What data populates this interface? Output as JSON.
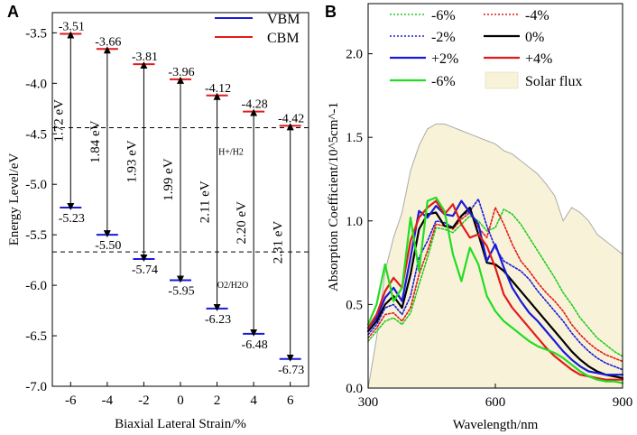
{
  "chart_data": [
    {
      "panel": "A",
      "type": "band-alignment",
      "xlabel": "Biaxial Lateral Strain/%",
      "ylabel": "Energy Level/eV",
      "xlim": [
        -7,
        7
      ],
      "ylim": [
        -7.0,
        -3.3
      ],
      "xticks": [
        -6,
        -4,
        -2,
        0,
        2,
        4,
        6
      ],
      "yticks": [
        -7.0,
        -6.5,
        -6.0,
        -5.5,
        -5.0,
        -4.5,
        -4.0,
        -3.5
      ],
      "categories": [
        -6,
        -4,
        -2,
        0,
        2,
        4,
        6
      ],
      "series": [
        {
          "name": "VBM",
          "color": "#1a1adb",
          "values": [
            -5.23,
            -5.5,
            -5.74,
            -5.95,
            -6.23,
            -6.48,
            -6.73
          ]
        },
        {
          "name": "CBM",
          "color": "#e21a1a",
          "values": [
            -3.51,
            -3.66,
            -3.81,
            -3.96,
            -4.12,
            -4.28,
            -4.42
          ]
        }
      ],
      "vbm_labels": [
        "-5.23",
        "-5.50",
        "-5.74",
        "-5.95",
        "-6.23",
        "-6.48",
        "-6.73"
      ],
      "cbm_labels": [
        "-3.51",
        "-3.66",
        "-3.81",
        "-3.96",
        "-4.12",
        "-4.28",
        "-4.42"
      ],
      "gap_labels": [
        "1.72 eV",
        "1.84 eV",
        "1.93 eV",
        "1.99 eV",
        "2.11 eV",
        "2.20 eV",
        "2.31 eV"
      ],
      "reference_levels": [
        {
          "label": "H+/H2",
          "value": -4.44
        },
        {
          "label": "O2/H2O",
          "value": -5.67
        }
      ],
      "legend": {
        "placement": "top-right",
        "entries": [
          "VBM",
          "CBM"
        ]
      },
      "ytick_labels": [
        "-7.0",
        "-6.5",
        "-6.0",
        "-5.5",
        "-5.0",
        "-4.5",
        "-4.0",
        "-3.5"
      ],
      "xtick_labels": [
        "-6",
        "-4",
        "-2",
        "0",
        "2",
        "4",
        "6"
      ]
    },
    {
      "panel": "B",
      "type": "line",
      "xlabel": "Wavelength/nm",
      "ylabel": "Absorption Coefficient/10^5cm^-1",
      "xlim": [
        300,
        900
      ],
      "ylim": [
        0.0,
        2.3
      ],
      "xticks": [
        300,
        600,
        900
      ],
      "yticks": [
        0.0,
        0.5,
        1.0,
        1.5,
        2.0
      ],
      "xtick_labels": [
        "300",
        "600",
        "900"
      ],
      "ytick_labels": [
        "0.0",
        "0.5",
        "1.0",
        "1.5",
        "2.0"
      ],
      "legend": {
        "placement": "top",
        "entries": [
          "-6%",
          "-4%",
          "-2%",
          "0%",
          "+2%",
          "+4%",
          "-6%",
          "Solar flux"
        ]
      },
      "series": [
        {
          "name": "-6%",
          "color": "#22cc22",
          "style": "dotted",
          "x": [
            300,
            320,
            340,
            360,
            380,
            400,
            420,
            440,
            460,
            480,
            500,
            520,
            540,
            560,
            580,
            600,
            620,
            640,
            660,
            680,
            700,
            720,
            740,
            760,
            780,
            800,
            820,
            840,
            860,
            880,
            900
          ],
          "y": [
            0.28,
            0.34,
            0.4,
            0.42,
            0.38,
            0.45,
            0.62,
            0.78,
            0.96,
            0.95,
            0.93,
            0.98,
            1.03,
            1.0,
            0.94,
            0.96,
            1.07,
            1.04,
            0.98,
            0.9,
            0.82,
            0.74,
            0.66,
            0.57,
            0.5,
            0.42,
            0.36,
            0.3,
            0.26,
            0.22,
            0.19
          ]
        },
        {
          "name": "-4%",
          "color": "#e21a1a",
          "style": "dotted",
          "x": [
            300,
            320,
            340,
            360,
            380,
            400,
            420,
            440,
            460,
            480,
            500,
            520,
            540,
            560,
            580,
            600,
            620,
            640,
            660,
            680,
            700,
            720,
            740,
            760,
            780,
            800,
            820,
            840,
            860,
            880,
            900
          ],
          "y": [
            0.3,
            0.36,
            0.44,
            0.45,
            0.4,
            0.48,
            0.68,
            0.82,
            0.98,
            0.97,
            0.95,
            1.01,
            1.05,
            0.96,
            0.9,
            1.08,
            0.98,
            0.86,
            0.76,
            0.7,
            0.63,
            0.57,
            0.52,
            0.46,
            0.38,
            0.32,
            0.27,
            0.23,
            0.2,
            0.18,
            0.16
          ]
        },
        {
          "name": "-2%",
          "color": "#1a1adb",
          "style": "dotted",
          "x": [
            300,
            320,
            340,
            360,
            380,
            400,
            420,
            440,
            460,
            480,
            500,
            520,
            540,
            560,
            580,
            600,
            620,
            640,
            660,
            680,
            700,
            720,
            740,
            760,
            780,
            800,
            820,
            840,
            860,
            880,
            900
          ],
          "y": [
            0.32,
            0.38,
            0.48,
            0.5,
            0.44,
            0.55,
            0.78,
            0.88,
            1.0,
            0.99,
            0.96,
            1.03,
            1.06,
            1.13,
            0.97,
            0.84,
            0.76,
            0.73,
            0.7,
            0.65,
            0.58,
            0.52,
            0.46,
            0.4,
            0.33,
            0.27,
            0.22,
            0.18,
            0.15,
            0.13,
            0.11
          ]
        },
        {
          "name": "0%",
          "color": "#000000",
          "style": "solid",
          "x": [
            300,
            320,
            340,
            360,
            380,
            400,
            420,
            440,
            460,
            480,
            500,
            520,
            540,
            560,
            580,
            600,
            620,
            640,
            660,
            680,
            700,
            720,
            740,
            760,
            780,
            800,
            820,
            840,
            860,
            880,
            900
          ],
          "y": [
            0.34,
            0.4,
            0.5,
            0.55,
            0.48,
            0.68,
            0.95,
            1.04,
            1.05,
            0.97,
            0.96,
            1.03,
            1.08,
            0.92,
            0.75,
            0.74,
            0.7,
            0.64,
            0.58,
            0.52,
            0.46,
            0.4,
            0.34,
            0.28,
            0.22,
            0.17,
            0.13,
            0.1,
            0.08,
            0.07,
            0.06
          ]
        },
        {
          "name": "+2%",
          "color": "#1a1adb",
          "style": "solid",
          "x": [
            300,
            320,
            340,
            360,
            380,
            400,
            420,
            440,
            460,
            480,
            500,
            520,
            540,
            560,
            580,
            600,
            620,
            640,
            660,
            680,
            700,
            720,
            740,
            760,
            780,
            800,
            820,
            840,
            860,
            880,
            900
          ],
          "y": [
            0.36,
            0.42,
            0.54,
            0.6,
            0.52,
            0.78,
            1.06,
            1.02,
            1.09,
            1.04,
            1.03,
            1.12,
            1.05,
            0.98,
            0.76,
            0.86,
            0.72,
            0.6,
            0.52,
            0.45,
            0.4,
            0.34,
            0.28,
            0.22,
            0.17,
            0.13,
            0.1,
            0.09,
            0.08,
            0.08,
            0.08
          ]
        },
        {
          "name": "+4%",
          "color": "#e21a1a",
          "style": "solid",
          "x": [
            300,
            320,
            340,
            360,
            380,
            400,
            420,
            440,
            460,
            480,
            500,
            520,
            540,
            560,
            580,
            600,
            620,
            640,
            660,
            680,
            700,
            720,
            740,
            760,
            780,
            800,
            820,
            840,
            860,
            880,
            900
          ],
          "y": [
            0.36,
            0.44,
            0.58,
            0.66,
            0.6,
            0.88,
            1.02,
            1.08,
            1.12,
            1.04,
            1.1,
            0.98,
            0.9,
            0.92,
            0.85,
            0.72,
            0.56,
            0.48,
            0.42,
            0.36,
            0.3,
            0.24,
            0.19,
            0.15,
            0.11,
            0.08,
            0.07,
            0.06,
            0.05,
            0.05,
            0.05
          ]
        },
        {
          "name": "-6%",
          "color": "#22dd22",
          "style": "solid",
          "x": [
            300,
            320,
            340,
            360,
            380,
            400,
            420,
            440,
            460,
            480,
            500,
            520,
            540,
            560,
            580,
            600,
            620,
            640,
            660,
            680,
            700,
            720,
            740,
            760,
            780,
            800,
            820,
            840,
            860,
            880,
            900
          ],
          "y": [
            0.38,
            0.5,
            0.74,
            0.52,
            0.6,
            1.02,
            0.7,
            1.12,
            1.14,
            1.06,
            0.8,
            0.64,
            0.84,
            0.74,
            0.55,
            0.46,
            0.4,
            0.36,
            0.32,
            0.28,
            0.25,
            0.23,
            0.21,
            0.18,
            0.14,
            0.1,
            0.07,
            0.05,
            0.04,
            0.04,
            0.03
          ]
        },
        {
          "name": "Solar flux",
          "color": "#f8f3d8",
          "style": "area",
          "x": [
            300,
            320,
            340,
            360,
            380,
            400,
            420,
            440,
            460,
            480,
            500,
            520,
            540,
            560,
            580,
            600,
            620,
            640,
            660,
            680,
            700,
            720,
            740,
            760,
            780,
            800,
            820,
            840,
            860,
            880,
            900
          ],
          "y": [
            0.0,
            0.3,
            0.7,
            0.9,
            1.05,
            1.3,
            1.45,
            1.55,
            1.58,
            1.58,
            1.56,
            1.54,
            1.52,
            1.5,
            1.48,
            1.46,
            1.42,
            1.4,
            1.36,
            1.32,
            1.28,
            1.22,
            1.15,
            1.0,
            1.08,
            1.05,
            1.0,
            0.92,
            0.88,
            0.84,
            0.8
          ]
        }
      ]
    }
  ]
}
